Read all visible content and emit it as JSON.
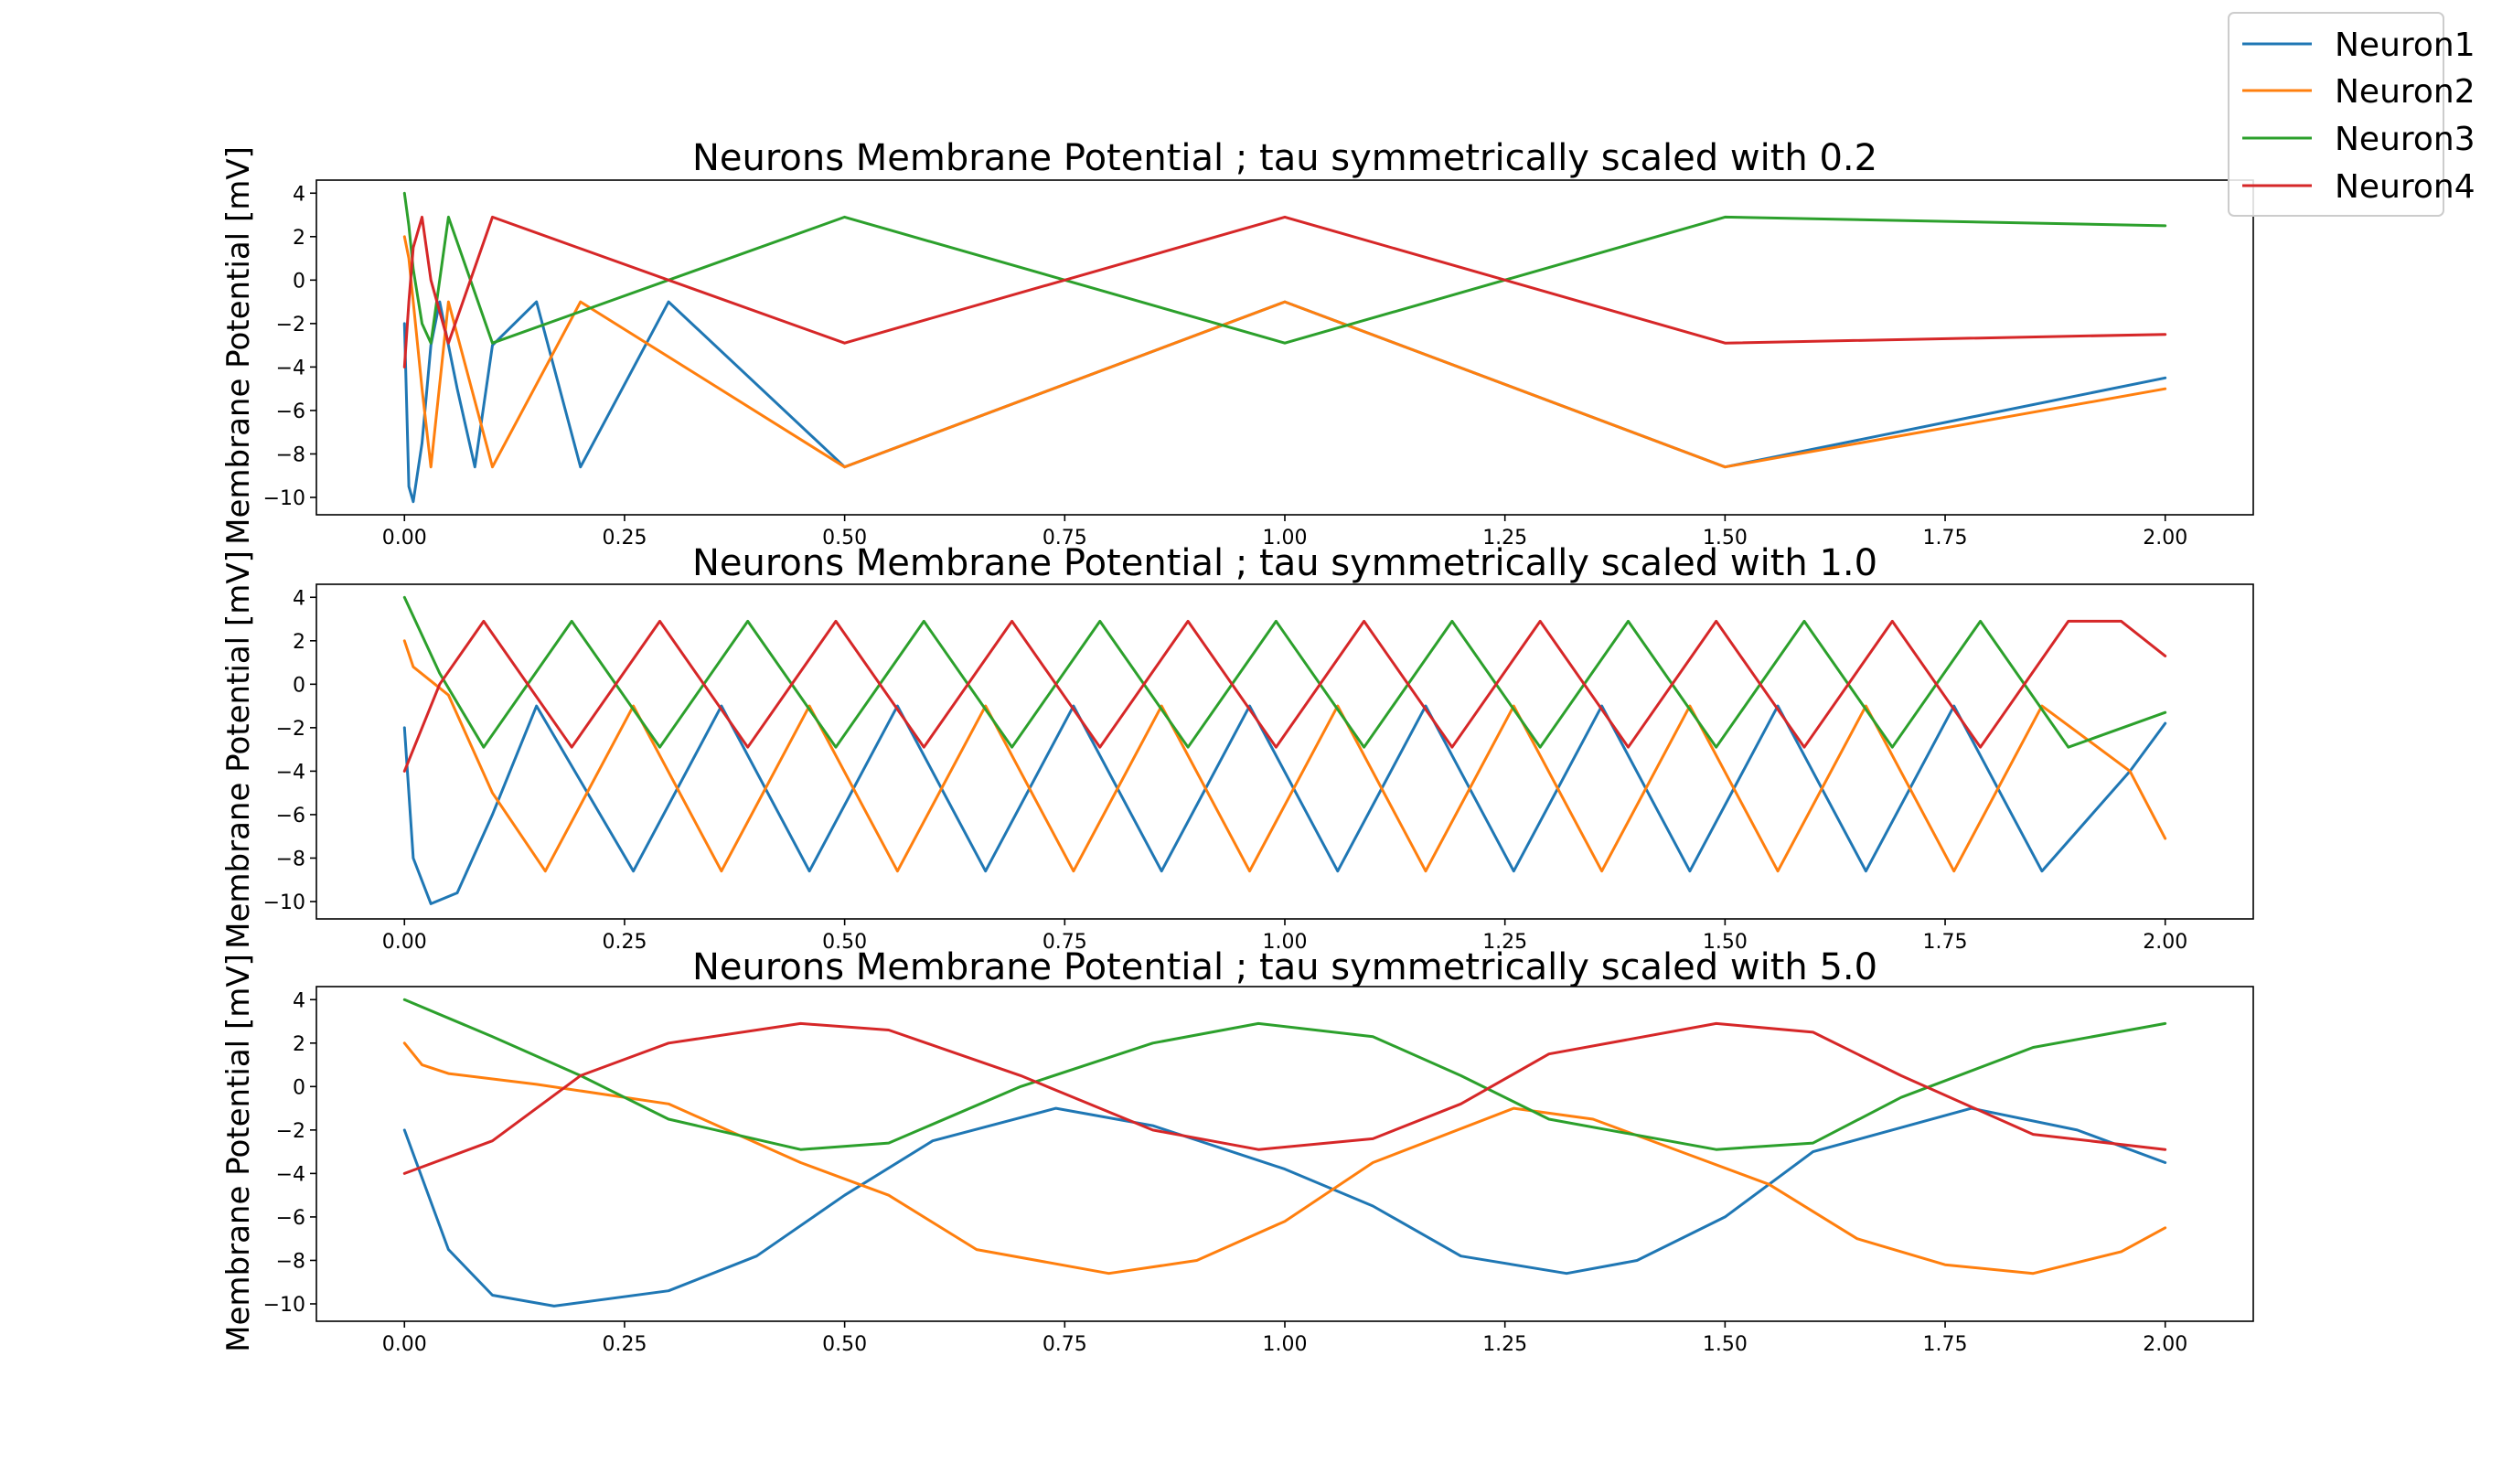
{
  "chart_data": [
    {
      "type": "line",
      "title": "Neurons Membrane Potential ; tau symmetrically scaled with 0.2",
      "xlabel": "",
      "ylabel": "Membrane Potential [mV]",
      "xlim": [
        -0.1,
        2.1
      ],
      "ylim": [
        -10.8,
        4.6
      ],
      "xticks": [
        "0.00",
        "0.25",
        "0.50",
        "0.75",
        "1.00",
        "1.25",
        "1.50",
        "1.75",
        "2.00"
      ],
      "yticks": [
        "4",
        "2",
        "0",
        "-2",
        "-4",
        "-6",
        "-8",
        "-10"
      ],
      "grid": false,
      "series": [
        {
          "name": "Neuron1",
          "color": "#1f77b4",
          "x": [
            0.0,
            0.005,
            0.01,
            0.02,
            0.03,
            0.04,
            0.06,
            0.08,
            0.1,
            0.15,
            0.2,
            0.3,
            0.5,
            1.0,
            1.5,
            2.0
          ],
          "y": [
            -2.0,
            -9.5,
            -10.2,
            -7.5,
            -3.0,
            -1.0,
            -5.0,
            -8.6,
            -3.0,
            -1.0,
            -8.6,
            -1.0,
            -8.6,
            -1.0,
            -8.6,
            -4.5
          ]
        },
        {
          "name": "Neuron2",
          "color": "#ff7f0e",
          "x": [
            0.0,
            0.005,
            0.01,
            0.02,
            0.03,
            0.05,
            0.1,
            0.2,
            0.5,
            1.0,
            1.5,
            2.0
          ],
          "y": [
            2.0,
            1.0,
            -1.0,
            -5.0,
            -8.6,
            -1.0,
            -8.6,
            -1.0,
            -8.6,
            -1.0,
            -8.6,
            -5.0
          ]
        },
        {
          "name": "Neuron3",
          "color": "#2ca02c",
          "x": [
            0.0,
            0.005,
            0.01,
            0.02,
            0.03,
            0.05,
            0.1,
            0.5,
            1.0,
            1.5,
            2.0
          ],
          "y": [
            4.0,
            2.5,
            0.5,
            -2.0,
            -2.9,
            2.9,
            -2.9,
            2.9,
            -2.9,
            2.9,
            2.5
          ]
        },
        {
          "name": "Neuron4",
          "color": "#d62728",
          "x": [
            0.0,
            0.005,
            0.01,
            0.02,
            0.03,
            0.05,
            0.1,
            0.5,
            1.0,
            1.5,
            2.0
          ],
          "y": [
            -4.0,
            -1.0,
            1.5,
            2.9,
            0.0,
            -2.9,
            2.9,
            -2.9,
            2.9,
            -2.9,
            -2.5
          ]
        }
      ]
    },
    {
      "type": "line",
      "title": "Neurons Membrane Potential ; tau symmetrically scaled with 1.0",
      "xlabel": "",
      "ylabel": "Membrane Potential [mV]",
      "xlim": [
        -0.1,
        2.1
      ],
      "ylim": [
        -10.8,
        4.6
      ],
      "xticks": [
        "0.00",
        "0.25",
        "0.50",
        "0.75",
        "1.00",
        "1.25",
        "1.50",
        "1.75",
        "2.00"
      ],
      "yticks": [
        "4",
        "2",
        "0",
        "-2",
        "-4",
        "-6",
        "-8",
        "-10"
      ],
      "grid": false,
      "series": [
        {
          "name": "Neuron1",
          "color": "#1f77b4",
          "x": [
            0.0,
            0.01,
            0.03,
            0.06,
            0.1,
            0.15,
            0.26,
            0.36,
            0.46,
            0.56,
            0.66,
            0.76,
            0.86,
            0.96,
            1.06,
            1.16,
            1.26,
            1.36,
            1.46,
            1.56,
            1.66,
            1.76,
            1.86,
            1.96,
            2.0
          ],
          "y": [
            -2.0,
            -8.0,
            -10.1,
            -9.6,
            -6.0,
            -1.0,
            -8.6,
            -1.0,
            -8.6,
            -1.0,
            -8.6,
            -1.0,
            -8.6,
            -1.0,
            -8.6,
            -1.0,
            -8.6,
            -1.0,
            -8.6,
            -1.0,
            -8.6,
            -1.0,
            -8.6,
            -4.0,
            -1.8
          ]
        },
        {
          "name": "Neuron2",
          "color": "#ff7f0e",
          "x": [
            0.0,
            0.01,
            0.05,
            0.1,
            0.16,
            0.26,
            0.36,
            0.46,
            0.56,
            0.66,
            0.76,
            0.86,
            0.96,
            1.06,
            1.16,
            1.26,
            1.36,
            1.46,
            1.56,
            1.66,
            1.76,
            1.86,
            1.96,
            2.0
          ],
          "y": [
            2.0,
            0.8,
            -0.5,
            -5.0,
            -8.6,
            -1.0,
            -8.6,
            -1.0,
            -8.6,
            -1.0,
            -8.6,
            -1.0,
            -8.6,
            -1.0,
            -8.6,
            -1.0,
            -8.6,
            -1.0,
            -8.6,
            -1.0,
            -8.6,
            -1.0,
            -4.0,
            -7.1
          ]
        },
        {
          "name": "Neuron3",
          "color": "#2ca02c",
          "x": [
            0.0,
            0.04,
            0.09,
            0.19,
            0.29,
            0.39,
            0.49,
            0.59,
            0.69,
            0.79,
            0.89,
            0.99,
            1.09,
            1.19,
            1.29,
            1.39,
            1.49,
            1.59,
            1.69,
            1.79,
            1.89,
            2.0
          ],
          "y": [
            4.0,
            0.5,
            -2.9,
            2.9,
            -2.9,
            2.9,
            -2.9,
            2.9,
            -2.9,
            2.9,
            -2.9,
            2.9,
            -2.9,
            2.9,
            -2.9,
            2.9,
            -2.9,
            2.9,
            -2.9,
            2.9,
            -2.9,
            -1.3
          ]
        },
        {
          "name": "Neuron4",
          "color": "#d62728",
          "x": [
            0.0,
            0.04,
            0.09,
            0.19,
            0.29,
            0.39,
            0.49,
            0.59,
            0.69,
            0.79,
            0.89,
            0.99,
            1.09,
            1.19,
            1.29,
            1.39,
            1.49,
            1.59,
            1.69,
            1.79,
            1.89,
            1.95,
            2.0
          ],
          "y": [
            -4.0,
            0.0,
            2.9,
            -2.9,
            2.9,
            -2.9,
            2.9,
            -2.9,
            2.9,
            -2.9,
            2.9,
            -2.9,
            2.9,
            -2.9,
            2.9,
            -2.9,
            2.9,
            -2.9,
            2.9,
            -2.9,
            2.9,
            2.9,
            1.3
          ]
        }
      ]
    },
    {
      "type": "line",
      "title": "Neurons Membrane Potential ; tau symmetrically scaled with 5.0",
      "xlabel": "",
      "ylabel": "Membrane Potential [mV]",
      "xlim": [
        -0.1,
        2.1
      ],
      "ylim": [
        -10.8,
        4.6
      ],
      "xticks": [
        "0.00",
        "0.25",
        "0.50",
        "0.75",
        "1.00",
        "1.25",
        "1.50",
        "1.75",
        "2.00"
      ],
      "yticks": [
        "4",
        "2",
        "0",
        "-2",
        "-4",
        "-6",
        "-8",
        "-10"
      ],
      "grid": false,
      "series": [
        {
          "name": "Neuron1",
          "color": "#1f77b4",
          "x": [
            0.0,
            0.05,
            0.1,
            0.17,
            0.3,
            0.4,
            0.5,
            0.6,
            0.74,
            0.85,
            1.0,
            1.1,
            1.2,
            1.32,
            1.4,
            1.5,
            1.6,
            1.78,
            1.9,
            2.0
          ],
          "y": [
            -2.0,
            -7.5,
            -9.6,
            -10.1,
            -9.4,
            -7.8,
            -5.0,
            -2.5,
            -1.0,
            -1.8,
            -3.8,
            -5.5,
            -7.8,
            -8.6,
            -8.0,
            -6.0,
            -3.0,
            -1.0,
            -2.0,
            -3.5
          ]
        },
        {
          "name": "Neuron2",
          "color": "#ff7f0e",
          "x": [
            0.0,
            0.02,
            0.05,
            0.15,
            0.3,
            0.45,
            0.55,
            0.65,
            0.8,
            0.9,
            1.0,
            1.1,
            1.26,
            1.35,
            1.45,
            1.55,
            1.65,
            1.75,
            1.85,
            1.95,
            2.0
          ],
          "y": [
            2.0,
            1.0,
            0.6,
            0.1,
            -0.8,
            -3.5,
            -5.0,
            -7.5,
            -8.6,
            -8.0,
            -6.2,
            -3.5,
            -1.0,
            -1.5,
            -3.0,
            -4.5,
            -7.0,
            -8.2,
            -8.6,
            -7.6,
            -6.5
          ]
        },
        {
          "name": "Neuron3",
          "color": "#2ca02c",
          "x": [
            0.0,
            0.1,
            0.2,
            0.3,
            0.45,
            0.55,
            0.7,
            0.85,
            0.97,
            1.1,
            1.2,
            1.3,
            1.49,
            1.6,
            1.7,
            1.85,
            2.0
          ],
          "y": [
            4.0,
            2.3,
            0.5,
            -1.5,
            -2.9,
            -2.6,
            0.0,
            2.0,
            2.9,
            2.3,
            0.5,
            -1.5,
            -2.9,
            -2.6,
            -0.5,
            1.8,
            2.9
          ]
        },
        {
          "name": "Neuron4",
          "color": "#d62728",
          "x": [
            0.0,
            0.1,
            0.2,
            0.3,
            0.45,
            0.55,
            0.7,
            0.85,
            0.97,
            1.1,
            1.2,
            1.3,
            1.49,
            1.6,
            1.7,
            1.85,
            2.0
          ],
          "y": [
            -4.0,
            -2.5,
            0.5,
            2.0,
            2.9,
            2.6,
            0.5,
            -2.0,
            -2.9,
            -2.4,
            -0.8,
            1.5,
            2.9,
            2.5,
            0.5,
            -2.2,
            -2.9
          ]
        }
      ]
    }
  ],
  "legend": {
    "placement": "top-right",
    "entries": [
      {
        "label": "Neuron1",
        "color": "#1f77b4"
      },
      {
        "label": "Neuron2",
        "color": "#ff7f0e"
      },
      {
        "label": "Neuron3",
        "color": "#2ca02c"
      },
      {
        "label": "Neuron4",
        "color": "#d62728"
      }
    ]
  }
}
